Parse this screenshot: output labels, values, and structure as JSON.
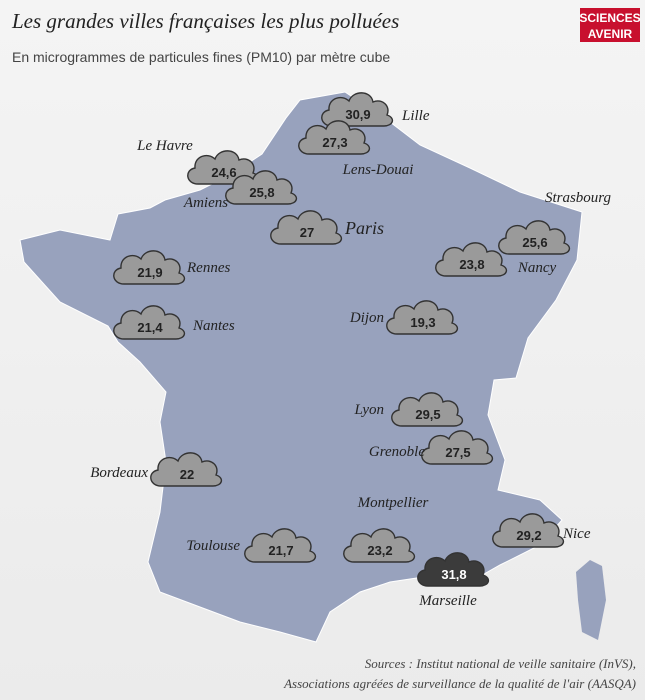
{
  "header": {
    "title": "Les grandes villes françaises les plus polluées",
    "subtitle": "En microgrammes de particules fines (PM10) par mètre cube",
    "logo_top": "SCIENCES",
    "logo_bottom": "AVENIR"
  },
  "cities": [
    {
      "name": "Lille",
      "value": "30,9"
    },
    {
      "name": "Lens-Douai",
      "value": "27,3"
    },
    {
      "name": "Le Havre",
      "value": "24,6"
    },
    {
      "name": "Amiens",
      "value": "25,8"
    },
    {
      "name": "Paris",
      "value": "27"
    },
    {
      "name": "Strasbourg",
      "value": "25,6"
    },
    {
      "name": "Nancy",
      "value": "23,8"
    },
    {
      "name": "Rennes",
      "value": "21,9"
    },
    {
      "name": "Nantes",
      "value": "21,4"
    },
    {
      "name": "Dijon",
      "value": "19,3"
    },
    {
      "name": "Lyon",
      "value": "29,5"
    },
    {
      "name": "Grenoble",
      "value": "27,5"
    },
    {
      "name": "Bordeaux",
      "value": "22"
    },
    {
      "name": "Montpellier",
      "value": "23,2"
    },
    {
      "name": "Toulouse",
      "value": "21,7"
    },
    {
      "name": "Nice",
      "value": "29,2"
    },
    {
      "name": "Marseille",
      "value": "31,8"
    }
  ],
  "sources": [
    "Sources : Institut national de veille sanitaire (InVS),",
    "Associations agréées de surveillance de la qualité de l'air (AASQA)"
  ]
}
